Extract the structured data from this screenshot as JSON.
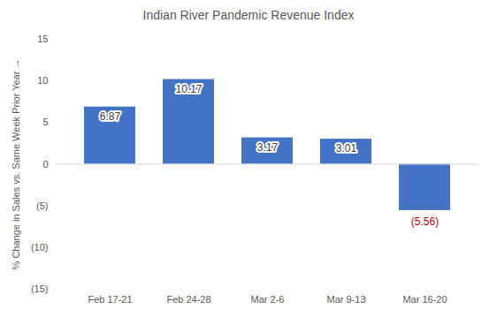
{
  "chart_data": {
    "type": "bar",
    "title": "Indian River Pandemic Revenue Index",
    "y_label": "% Change in Sales vs. Same Week Prior Year",
    "categories": [
      "Feb 17-21",
      "Feb 24-28",
      "Mar 2-6",
      "Mar 9-13",
      "Mar 16-20"
    ],
    "values": [
      6.87,
      10.17,
      3.17,
      3.01,
      -5.56
    ],
    "value_labels": [
      "6.87",
      "10.17",
      "3.17",
      "3.01",
      "(5.56)"
    ],
    "color": "#4472c4",
    "ylim": [
      -15,
      15
    ],
    "yticks": [
      15,
      10,
      5,
      0,
      {
        "value": -5,
        "label": "(5)"
      },
      {
        "value": -10,
        "label": "(10)"
      },
      {
        "value": -15,
        "label": "(15)"
      }
    ],
    "grid": false,
    "data_labels": true
  }
}
